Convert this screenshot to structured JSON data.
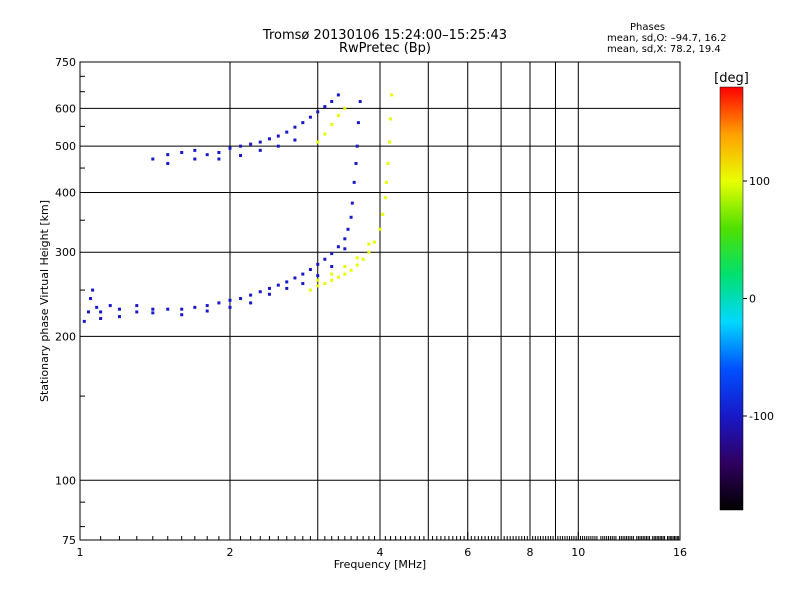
{
  "header": {
    "title": "Tromsø 20130106 15:24:00–15:25:43",
    "subtitle": "RwPretec (Bp)"
  },
  "stats": {
    "heading": "Phases",
    "line_o": "mean, sd,O: –94.7, 16.2",
    "line_x": "mean, sd,X:  78.2, 19.4"
  },
  "chart_data": {
    "type": "scatter",
    "title": "Tromsø 20130106 15:24:00–15:25:43",
    "subtitle": "RwPretec (Bp)",
    "xlabel": "Frequency [MHz]",
    "ylabel": "Stationary phase Virtual Height [km]",
    "x_scale": "log",
    "y_scale": "log",
    "xlim": [
      1,
      16
    ],
    "ylim": [
      75,
      750
    ],
    "x_ticks": [
      1,
      2,
      4,
      6,
      8,
      10,
      16
    ],
    "x_ticklabels": [
      "1",
      "2",
      "4",
      "6",
      "8",
      "10",
      "16"
    ],
    "x_gridlines": [
      1,
      2,
      3,
      4,
      5,
      6,
      7,
      8,
      9,
      10,
      16
    ],
    "y_ticks": [
      75,
      100,
      200,
      300,
      400,
      500,
      600,
      750
    ],
    "y_ticklabels": [
      "75",
      "100",
      "200",
      "300",
      "400",
      "500",
      "600",
      "750"
    ],
    "y_gridlines": [
      100,
      200,
      300,
      400,
      500,
      600
    ],
    "grid": true,
    "colorbar": {
      "label": "[deg]",
      "range": [
        -180,
        180
      ],
      "ticks": [
        100,
        0,
        -100
      ],
      "ticklabels": [
        "100",
        "0",
        "-100"
      ],
      "colors": [
        "#000000",
        "#300060",
        "#1818c8",
        "#0050ff",
        "#00d8ff",
        "#00e070",
        "#50e000",
        "#e8ff00",
        "#ffa000",
        "#ff0000"
      ]
    },
    "series": [
      {
        "kind": "o-trace",
        "phase": -100,
        "points": [
          [
            1.02,
            215
          ],
          [
            1.04,
            225
          ],
          [
            1.05,
            240
          ],
          [
            1.06,
            250
          ],
          [
            1.08,
            230
          ],
          [
            1.1,
            225
          ],
          [
            1.15,
            232
          ],
          [
            1.2,
            228
          ],
          [
            1.3,
            232
          ],
          [
            1.4,
            228
          ],
          [
            1.5,
            228
          ],
          [
            1.6,
            228
          ],
          [
            1.7,
            230
          ],
          [
            1.8,
            232
          ],
          [
            1.9,
            235
          ],
          [
            2.0,
            238
          ],
          [
            2.1,
            240
          ],
          [
            2.2,
            244
          ],
          [
            2.3,
            248
          ],
          [
            2.4,
            252
          ],
          [
            2.5,
            256
          ],
          [
            2.6,
            260
          ],
          [
            2.7,
            265
          ],
          [
            2.8,
            270
          ],
          [
            2.9,
            276
          ],
          [
            3.0,
            283
          ],
          [
            3.1,
            290
          ],
          [
            3.2,
            298
          ],
          [
            3.3,
            308
          ],
          [
            3.4,
            320
          ],
          [
            3.45,
            335
          ],
          [
            3.5,
            355
          ],
          [
            3.52,
            380
          ],
          [
            3.55,
            420
          ],
          [
            3.58,
            460
          ],
          [
            3.6,
            500
          ],
          [
            3.62,
            560
          ],
          [
            3.65,
            620
          ],
          [
            1.1,
            218
          ],
          [
            1.2,
            220
          ],
          [
            1.3,
            225
          ],
          [
            1.4,
            224
          ],
          [
            1.6,
            222
          ],
          [
            1.8,
            226
          ],
          [
            2.0,
            230
          ],
          [
            2.2,
            235
          ],
          [
            2.4,
            245
          ],
          [
            2.6,
            252
          ],
          [
            2.8,
            258
          ],
          [
            3.0,
            268
          ],
          [
            3.2,
            280
          ],
          [
            3.4,
            305
          ]
        ]
      },
      {
        "kind": "o-trace-upper",
        "phase": -100,
        "points": [
          [
            1.4,
            470
          ],
          [
            1.5,
            480
          ],
          [
            1.6,
            485
          ],
          [
            1.7,
            490
          ],
          [
            1.8,
            480
          ],
          [
            1.9,
            485
          ],
          [
            2.0,
            495
          ],
          [
            2.1,
            500
          ],
          [
            2.2,
            505
          ],
          [
            2.3,
            510
          ],
          [
            2.4,
            518
          ],
          [
            2.5,
            525
          ],
          [
            2.6,
            535
          ],
          [
            2.7,
            548
          ],
          [
            2.8,
            560
          ],
          [
            2.9,
            575
          ],
          [
            3.0,
            590
          ],
          [
            3.1,
            605
          ],
          [
            3.2,
            620
          ],
          [
            3.3,
            640
          ],
          [
            1.5,
            460
          ],
          [
            1.7,
            470
          ],
          [
            1.9,
            470
          ],
          [
            2.1,
            478
          ],
          [
            2.3,
            490
          ],
          [
            2.5,
            500
          ],
          [
            2.7,
            515
          ]
        ]
      },
      {
        "kind": "x-trace",
        "phase": 80,
        "points": [
          [
            2.9,
            250
          ],
          [
            3.0,
            255
          ],
          [
            3.1,
            258
          ],
          [
            3.2,
            262
          ],
          [
            3.3,
            266
          ],
          [
            3.4,
            270
          ],
          [
            3.5,
            275
          ],
          [
            3.6,
            282
          ],
          [
            3.7,
            290
          ],
          [
            3.8,
            300
          ],
          [
            3.9,
            315
          ],
          [
            4.0,
            335
          ],
          [
            4.05,
            360
          ],
          [
            4.1,
            390
          ],
          [
            4.12,
            420
          ],
          [
            4.15,
            460
          ],
          [
            4.18,
            510
          ],
          [
            4.2,
            570
          ],
          [
            4.22,
            640
          ],
          [
            3.0,
            262
          ],
          [
            3.2,
            270
          ],
          [
            3.4,
            280
          ],
          [
            3.6,
            292
          ],
          [
            3.8,
            312
          ],
          [
            3.0,
            510
          ],
          [
            3.1,
            530
          ],
          [
            3.2,
            555
          ],
          [
            3.3,
            580
          ],
          [
            3.4,
            600
          ]
        ]
      }
    ]
  }
}
